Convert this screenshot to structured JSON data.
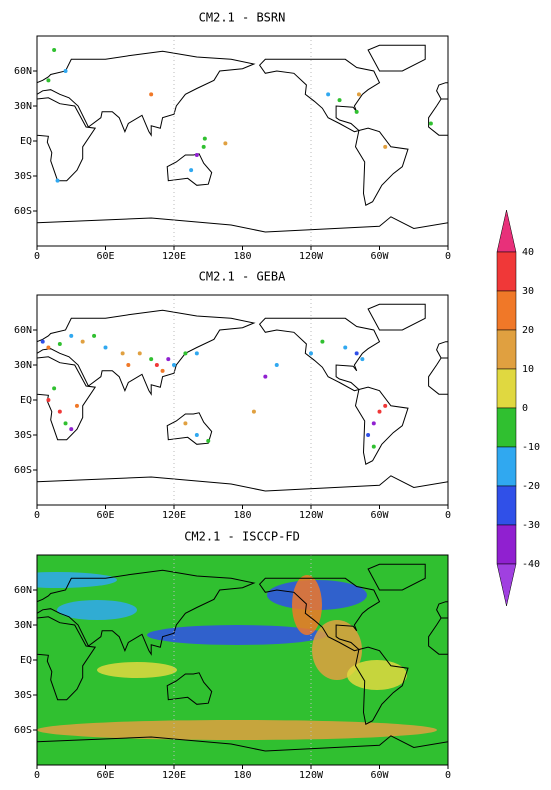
{
  "panels": [
    {
      "title": "CM2.1 - BSRN",
      "stations": [
        [
          10,
          52,
          -10
        ],
        [
          25,
          60,
          -20
        ],
        [
          15,
          78,
          -10
        ],
        [
          135,
          -25,
          -20
        ],
        [
          146,
          -5,
          -10
        ],
        [
          147,
          2,
          -10
        ],
        [
          140,
          -12,
          -40
        ],
        [
          165,
          -2,
          10
        ],
        [
          255,
          40,
          -20
        ],
        [
          265,
          35,
          -10
        ],
        [
          282,
          40,
          10
        ],
        [
          280,
          25,
          -10
        ],
        [
          100,
          40,
          20
        ],
        [
          18,
          -34,
          -20
        ],
        [
          305,
          -5,
          10
        ],
        [
          345,
          15,
          -10
        ]
      ]
    },
    {
      "title": "CM2.1 - GEBA",
      "stations": [
        [
          5,
          50,
          -30
        ],
        [
          10,
          45,
          20
        ],
        [
          20,
          48,
          -10
        ],
        [
          30,
          55,
          -20
        ],
        [
          40,
          50,
          10
        ],
        [
          50,
          55,
          -10
        ],
        [
          60,
          45,
          -20
        ],
        [
          75,
          40,
          10
        ],
        [
          80,
          30,
          20
        ],
        [
          90,
          40,
          10
        ],
        [
          100,
          35,
          -10
        ],
        [
          105,
          30,
          30
        ],
        [
          110,
          25,
          20
        ],
        [
          115,
          35,
          -40
        ],
        [
          120,
          30,
          -20
        ],
        [
          130,
          40,
          -10
        ],
        [
          140,
          40,
          -20
        ],
        [
          10,
          0,
          30
        ],
        [
          20,
          -10,
          30
        ],
        [
          25,
          -20,
          -10
        ],
        [
          30,
          -25,
          -40
        ],
        [
          35,
          -5,
          20
        ],
        [
          15,
          10,
          -10
        ],
        [
          140,
          -30,
          -20
        ],
        [
          150,
          -35,
          -10
        ],
        [
          130,
          -20,
          10
        ],
        [
          240,
          40,
          -20
        ],
        [
          250,
          50,
          -10
        ],
        [
          270,
          45,
          -20
        ],
        [
          280,
          40,
          -30
        ],
        [
          285,
          35,
          -20
        ],
        [
          300,
          -10,
          30
        ],
        [
          295,
          -20,
          -40
        ],
        [
          290,
          -30,
          -30
        ],
        [
          295,
          -40,
          -10
        ],
        [
          305,
          -5,
          30
        ],
        [
          200,
          20,
          -40
        ],
        [
          190,
          -10,
          10
        ],
        [
          210,
          30,
          -20
        ]
      ]
    },
    {
      "title": "CM2.1 - ISCCP-FD"
    }
  ],
  "lon_ticks": [
    {
      "value": 0,
      "label": "0"
    },
    {
      "value": 60,
      "label": "60E"
    },
    {
      "value": 120,
      "label": "120E"
    },
    {
      "value": 180,
      "label": "180"
    },
    {
      "value": 240,
      "label": "120W"
    },
    {
      "value": 300,
      "label": "60W"
    },
    {
      "value": 360,
      "label": "0"
    }
  ],
  "lat_ticks": [
    {
      "value": 60,
      "label": "60N"
    },
    {
      "value": 30,
      "label": "30N"
    },
    {
      "value": 0,
      "label": "EQ"
    },
    {
      "value": -30,
      "label": "30S"
    },
    {
      "value": -60,
      "label": "60S"
    }
  ],
  "colorbar": {
    "levels": [
      40,
      30,
      20,
      10,
      0,
      -10,
      -20,
      -30,
      -40
    ],
    "colors": [
      "#e8307a",
      "#f03838",
      "#f07828",
      "#e0a040",
      "#e0d840",
      "#30c030",
      "#30a8f0",
      "#3050e8",
      "#9020d0",
      "#a040e0"
    ]
  }
}
